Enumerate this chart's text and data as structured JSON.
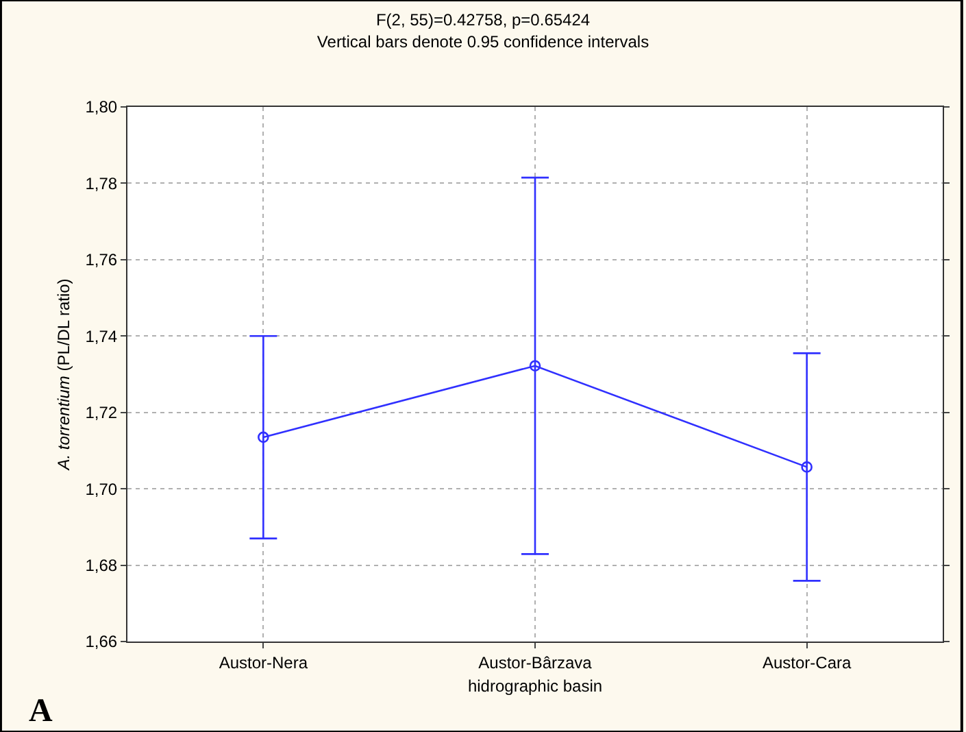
{
  "chart_data": {
    "type": "line",
    "title": "F(2, 55)=0.42758, p=0.65424",
    "subtitle": "Vertical bars denote 0.95 confidence intervals",
    "xlabel": "hidrographic basin",
    "ylabel": "A. torrentium (PL/DL ratio)",
    "categories": [
      "Austor-Nera",
      "Austor-Bârzava",
      "Austor-Cara"
    ],
    "series": [
      {
        "color": "#3030ff",
        "values": [
          1.7135,
          1.7322,
          1.7057
        ],
        "errors": [
          0.0265,
          0.0493,
          0.0298
        ]
      }
    ],
    "ylim": [
      1.66,
      1.8
    ],
    "yticks": [
      {
        "value": 1.66,
        "label": "1,66"
      },
      {
        "value": 1.68,
        "label": "1,68"
      },
      {
        "value": 1.7,
        "label": "1,70"
      },
      {
        "value": 1.72,
        "label": "1,72"
      },
      {
        "value": 1.74,
        "label": "1,74"
      },
      {
        "value": 1.76,
        "label": "1,76"
      },
      {
        "value": 1.78,
        "label": "1,78"
      },
      {
        "value": 1.8,
        "label": "1,80"
      }
    ],
    "grid": true,
    "marker": "circle",
    "line_style": "solid",
    "annotations": [
      "A"
    ]
  }
}
